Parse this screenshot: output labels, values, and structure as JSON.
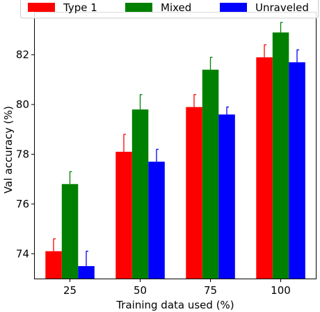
{
  "chart_data": {
    "type": "bar",
    "title": "",
    "xlabel": "Training data used (%)",
    "ylabel": "Val accuracy (%)",
    "categories": [
      "25",
      "50",
      "75",
      "100"
    ],
    "ylim": [
      73.0,
      83.7
    ],
    "yticks": [
      74,
      76,
      78,
      80,
      82
    ],
    "series": [
      {
        "name": "Type 1",
        "color": "#ff0000",
        "values": [
          74.1,
          78.1,
          79.9,
          81.9
        ],
        "errors": [
          0.5,
          0.7,
          0.5,
          0.5
        ]
      },
      {
        "name": "Mixed",
        "color": "#008000",
        "values": [
          76.8,
          79.8,
          81.4,
          82.9
        ],
        "errors": [
          0.5,
          0.6,
          0.5,
          0.4
        ]
      },
      {
        "name": "Unraveled",
        "color": "#0000ff",
        "values": [
          73.5,
          77.7,
          79.6,
          81.7
        ],
        "errors": [
          0.6,
          0.5,
          0.3,
          0.5
        ]
      }
    ],
    "legend": "top",
    "grid": false
  }
}
